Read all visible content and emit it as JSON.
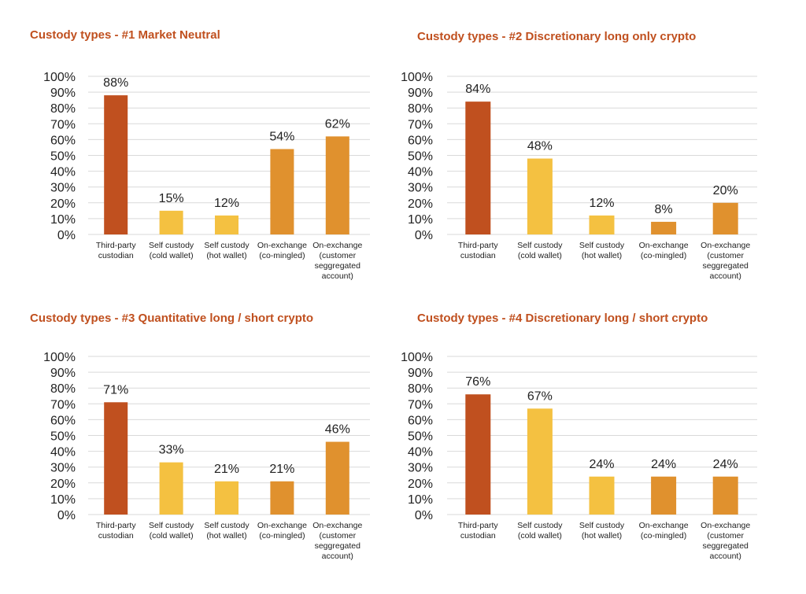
{
  "chart_data": [
    {
      "type": "bar",
      "title": "Custody types - #1 Market Neutral",
      "categories": [
        "Third-party custodian",
        "Self custody (cold wallet)",
        "Self custody (hot wallet)",
        "On-exchange (co-mingled)",
        "On-exchange (customer seggregated account)"
      ],
      "category_lines": [
        [
          "Third-party",
          "custodian"
        ],
        [
          "Self custody",
          "(cold wallet)"
        ],
        [
          "Self custody",
          "(hot wallet)"
        ],
        [
          "On-exchange",
          "(co-mingled)"
        ],
        [
          "On-exchange",
          "(customer",
          "seggregated",
          "account)"
        ]
      ],
      "values": [
        88,
        15,
        12,
        54,
        62
      ],
      "value_labels": [
        "88%",
        "15%",
        "12%",
        "54%",
        "62%"
      ],
      "bar_colors": [
        "#c0501f",
        "#f4c141",
        "#f4c141",
        "#e0912e",
        "#e0912e"
      ],
      "yticks": [
        "0%",
        "10%",
        "20%",
        "30%",
        "40%",
        "50%",
        "60%",
        "70%",
        "80%",
        "90%",
        "100%"
      ],
      "ylim": [
        0,
        100
      ],
      "grid": true
    },
    {
      "type": "bar",
      "title": "Custody types - #2 Discretionary long only crypto",
      "categories": [
        "Third-party custodian",
        "Self custody (cold wallet)",
        "Self custody (hot wallet)",
        "On-exchange (co-mingled)",
        "On-exchange (customer seggregated account)"
      ],
      "category_lines": [
        [
          "Third-party",
          "custodian"
        ],
        [
          "Self custody",
          "(cold wallet)"
        ],
        [
          "Self custody",
          "(hot wallet)"
        ],
        [
          "On-exchange",
          "(co-mingled)"
        ],
        [
          "On-exchange",
          "(customer",
          "seggregated",
          "account)"
        ]
      ],
      "values": [
        84,
        48,
        12,
        8,
        20
      ],
      "value_labels": [
        "84%",
        "48%",
        "12%",
        "8%",
        "20%"
      ],
      "bar_colors": [
        "#c0501f",
        "#f4c141",
        "#f4c141",
        "#e0912e",
        "#e0912e"
      ],
      "yticks": [
        "0%",
        "10%",
        "20%",
        "30%",
        "40%",
        "50%",
        "60%",
        "70%",
        "80%",
        "90%",
        "100%"
      ],
      "ylim": [
        0,
        100
      ],
      "grid": true
    },
    {
      "type": "bar",
      "title": "Custody types - #3 Quantitative long / short crypto",
      "categories": [
        "Third-party custodian",
        "Self custody (cold wallet)",
        "Self custody (hot wallet)",
        "On-exchange (co-mingled)",
        "On-exchange (customer seggregated account)"
      ],
      "category_lines": [
        [
          "Third-party",
          "custodian"
        ],
        [
          "Self custody",
          "(cold wallet)"
        ],
        [
          "Self custody",
          "(hot wallet)"
        ],
        [
          "On-exchange",
          "(co-mingled)"
        ],
        [
          "On-exchange",
          "(customer",
          "seggregated",
          "account)"
        ]
      ],
      "values": [
        71,
        33,
        21,
        21,
        46
      ],
      "value_labels": [
        "71%",
        "33%",
        "21%",
        "21%",
        "46%"
      ],
      "bar_colors": [
        "#c0501f",
        "#f4c141",
        "#f4c141",
        "#e0912e",
        "#e0912e"
      ],
      "yticks": [
        "0%",
        "10%",
        "20%",
        "30%",
        "40%",
        "50%",
        "60%",
        "70%",
        "80%",
        "90%",
        "100%"
      ],
      "ylim": [
        0,
        100
      ],
      "grid": true
    },
    {
      "type": "bar",
      "title": "Custody types - #4 Discretionary long / short crypto",
      "categories": [
        "Third-party custodian",
        "Self custody (cold wallet)",
        "Self custody (hot wallet)",
        "On-exchange (co-mingled)",
        "On-exchange (customer seggregated account)"
      ],
      "category_lines": [
        [
          "Third-party",
          "custodian"
        ],
        [
          "Self custody",
          "(cold wallet)"
        ],
        [
          "Self custody",
          "(hot wallet)"
        ],
        [
          "On-exchange",
          "(co-mingled)"
        ],
        [
          "On-exchange",
          "(customer",
          "seggregated",
          "account)"
        ]
      ],
      "values": [
        76,
        67,
        24,
        24,
        24
      ],
      "value_labels": [
        "76%",
        "67%",
        "24%",
        "24%",
        "24%"
      ],
      "bar_colors": [
        "#c0501f",
        "#f4c141",
        "#f4c141",
        "#e0912e",
        "#e0912e"
      ],
      "yticks": [
        "0%",
        "10%",
        "20%",
        "30%",
        "40%",
        "50%",
        "60%",
        "70%",
        "80%",
        "90%",
        "100%"
      ],
      "ylim": [
        0,
        100
      ],
      "grid": true
    }
  ]
}
